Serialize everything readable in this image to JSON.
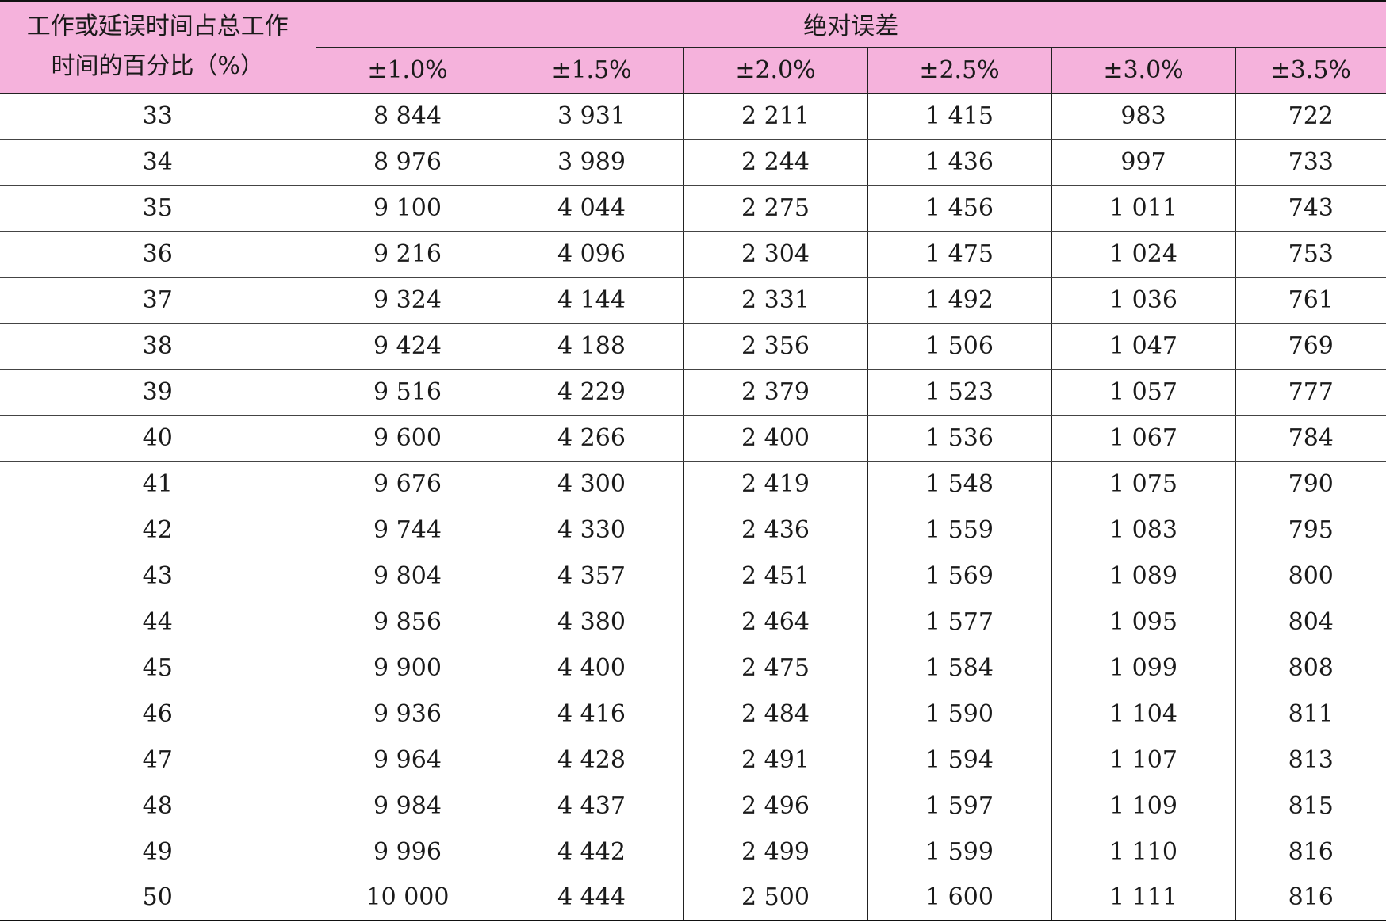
{
  "table": {
    "corner_header_line1": "工作或延误时间占总工作",
    "corner_header_line2": "时间的百分比（%）",
    "group_header": "绝对误差",
    "error_headers": [
      "±1.0%",
      "±1.5%",
      "±2.0%",
      "±2.5%",
      "±3.0%",
      "±3.5%"
    ],
    "rows": [
      [
        "33",
        "8 844",
        "3 931",
        "2 211",
        "1 415",
        "983",
        "722"
      ],
      [
        "34",
        "8 976",
        "3 989",
        "2 244",
        "1 436",
        "997",
        "733"
      ],
      [
        "35",
        "9 100",
        "4 044",
        "2 275",
        "1 456",
        "1 011",
        "743"
      ],
      [
        "36",
        "9 216",
        "4 096",
        "2 304",
        "1 475",
        "1 024",
        "753"
      ],
      [
        "37",
        "9 324",
        "4 144",
        "2 331",
        "1 492",
        "1 036",
        "761"
      ],
      [
        "38",
        "9 424",
        "4 188",
        "2 356",
        "1 506",
        "1 047",
        "769"
      ],
      [
        "39",
        "9 516",
        "4 229",
        "2 379",
        "1 523",
        "1 057",
        "777"
      ],
      [
        "40",
        "9 600",
        "4 266",
        "2 400",
        "1 536",
        "1 067",
        "784"
      ],
      [
        "41",
        "9 676",
        "4 300",
        "2 419",
        "1 548",
        "1 075",
        "790"
      ],
      [
        "42",
        "9 744",
        "4 330",
        "2 436",
        "1 559",
        "1 083",
        "795"
      ],
      [
        "43",
        "9 804",
        "4 357",
        "2 451",
        "1 569",
        "1 089",
        "800"
      ],
      [
        "44",
        "9 856",
        "4 380",
        "2 464",
        "1 577",
        "1 095",
        "804"
      ],
      [
        "45",
        "9 900",
        "4 400",
        "2 475",
        "1 584",
        "1 099",
        "808"
      ],
      [
        "46",
        "9 936",
        "4 416",
        "2 484",
        "1 590",
        "1 104",
        "811"
      ],
      [
        "47",
        "9 964",
        "4 428",
        "2 491",
        "1 594",
        "1 107",
        "813"
      ],
      [
        "48",
        "9 984",
        "4 437",
        "2 496",
        "1 597",
        "1 109",
        "815"
      ],
      [
        "49",
        "9 996",
        "4 442",
        "2 499",
        "1 599",
        "1 110",
        "816"
      ],
      [
        "50",
        "10 000",
        "4 444",
        "2 500",
        "1 600",
        "1 111",
        "816"
      ]
    ]
  },
  "colors": {
    "header_background": "#f5b2dc",
    "border": "#222222"
  }
}
